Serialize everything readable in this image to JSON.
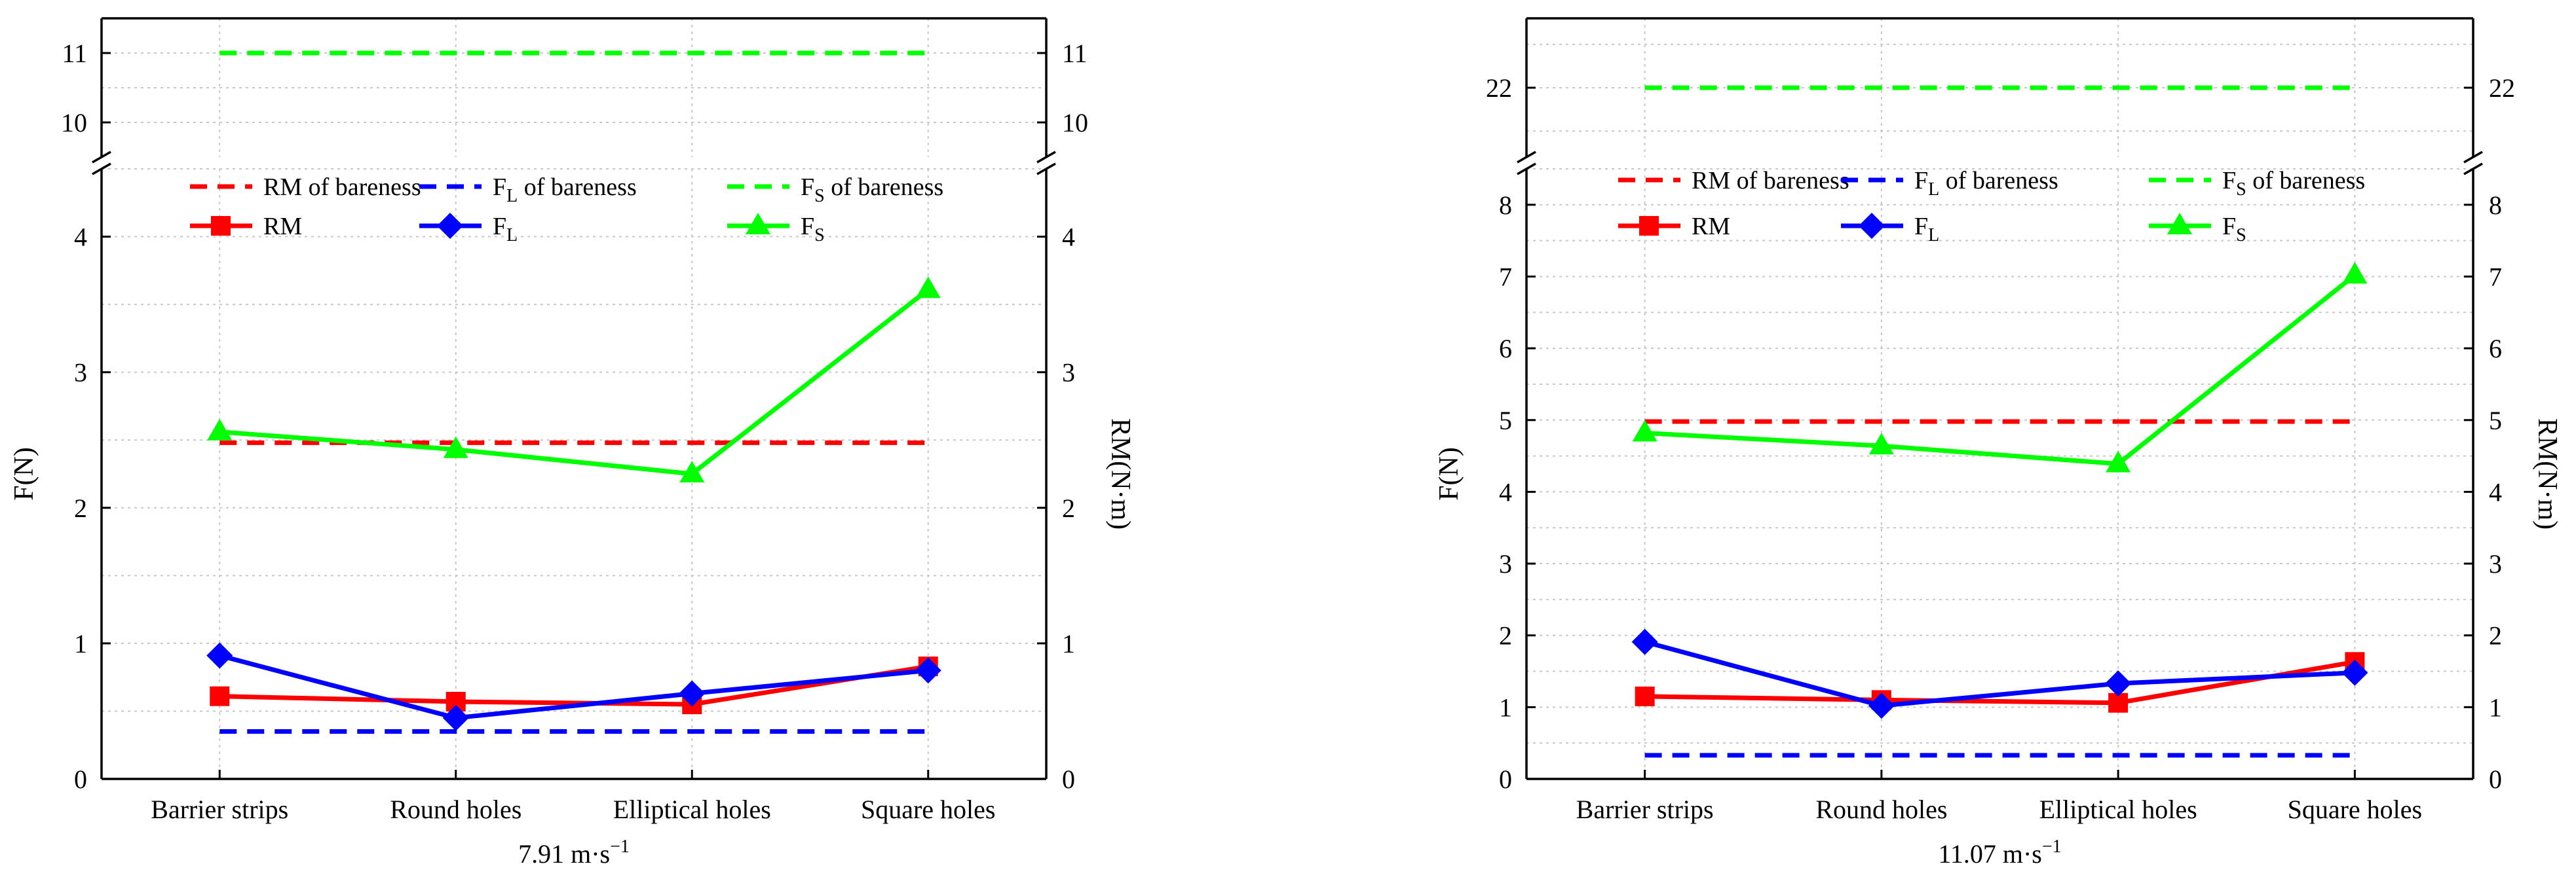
{
  "chart_data": [
    {
      "type": "line",
      "subtitle_main": "7.91 m·s",
      "subtitle_sup": "−1",
      "xlabel": "",
      "ylabel": "F(N)",
      "y2label": "RM(N·m)",
      "categories": [
        "Barrier strips",
        "Round holes",
        "Elliptical holes",
        "Square holes"
      ],
      "axis_break": true,
      "ylim_lower": [
        0,
        4.5
      ],
      "ylim_upper": [
        9.5,
        11.5
      ],
      "yticks_lower": [
        "0",
        "1",
        "2",
        "3",
        "4"
      ],
      "yticks_upper": [
        "10",
        "11"
      ],
      "grid": true,
      "series": [
        {
          "key": "rm_bare",
          "name": "RM of bareness",
          "name_sub": "",
          "name_rest": "",
          "color": "#ff0000",
          "style": "dashed",
          "marker": "none",
          "values": [
            2.48,
            2.48,
            2.48,
            2.48
          ]
        },
        {
          "key": "fl_bare",
          "name": "F",
          "name_sub": "L",
          "name_rest": " of bareness",
          "color": "#0000ff",
          "style": "dashed",
          "marker": "none",
          "values": [
            0.35,
            0.35,
            0.35,
            0.35
          ]
        },
        {
          "key": "fs_bare",
          "name": "F",
          "name_sub": "S",
          "name_rest": " of bareness",
          "color": "#00ff00",
          "style": "dashed",
          "marker": "none",
          "values": [
            11.0,
            11.0,
            11.0,
            11.0
          ]
        },
        {
          "key": "rm",
          "name": "RM",
          "name_sub": "",
          "name_rest": "",
          "color": "#ff0000",
          "style": "solid",
          "marker": "square",
          "values": [
            0.61,
            0.57,
            0.55,
            0.83
          ]
        },
        {
          "key": "fl",
          "name": "F",
          "name_sub": "L",
          "name_rest": "",
          "color": "#0000ff",
          "style": "solid",
          "marker": "diamond",
          "values": [
            0.91,
            0.45,
            0.63,
            0.8
          ]
        },
        {
          "key": "fs",
          "name": "F",
          "name_sub": "S",
          "name_rest": "",
          "color": "#00ff00",
          "style": "solid",
          "marker": "triangle",
          "values": [
            2.56,
            2.43,
            2.25,
            3.61
          ]
        }
      ]
    },
    {
      "type": "line",
      "subtitle_main": "11.07 m·s",
      "subtitle_sup": "−1",
      "xlabel": "",
      "ylabel": "F(N)",
      "y2label": "RM(N·m)",
      "categories": [
        "Barrier strips",
        "Round holes",
        "Elliptical holes",
        "Square holes"
      ],
      "axis_break": true,
      "ylim_lower": [
        0,
        8.5
      ],
      "ylim_upper": [
        21.2,
        22.8
      ],
      "yticks_lower": [
        "0",
        "1",
        "2",
        "3",
        "4",
        "5",
        "6",
        "7",
        "8"
      ],
      "yticks_upper": [
        "22"
      ],
      "grid": true,
      "series": [
        {
          "key": "rm_bare",
          "name": "RM of bareness",
          "name_sub": "",
          "name_rest": "",
          "color": "#ff0000",
          "style": "dashed",
          "marker": "none",
          "values": [
            4.98,
            4.98,
            4.98,
            4.98
          ]
        },
        {
          "key": "fl_bare",
          "name": "F",
          "name_sub": "L",
          "name_rest": " of bareness",
          "color": "#0000ff",
          "style": "dashed",
          "marker": "none",
          "values": [
            0.33,
            0.33,
            0.33,
            0.33
          ]
        },
        {
          "key": "fs_bare",
          "name": "F",
          "name_sub": "S",
          "name_rest": " of bareness",
          "color": "#00ff00",
          "style": "dashed",
          "marker": "none",
          "values": [
            22.0,
            22.0,
            22.0,
            22.0
          ]
        },
        {
          "key": "rm",
          "name": "RM",
          "name_sub": "",
          "name_rest": "",
          "color": "#ff0000",
          "style": "solid",
          "marker": "square",
          "values": [
            1.15,
            1.1,
            1.06,
            1.63
          ]
        },
        {
          "key": "fl",
          "name": "F",
          "name_sub": "L",
          "name_rest": "",
          "color": "#0000ff",
          "style": "solid",
          "marker": "diamond",
          "values": [
            1.91,
            1.02,
            1.33,
            1.48
          ]
        },
        {
          "key": "fs",
          "name": "F",
          "name_sub": "S",
          "name_rest": "",
          "color": "#00ff00",
          "style": "solid",
          "marker": "triangle",
          "values": [
            4.82,
            4.64,
            4.39,
            7.02
          ]
        }
      ]
    }
  ]
}
